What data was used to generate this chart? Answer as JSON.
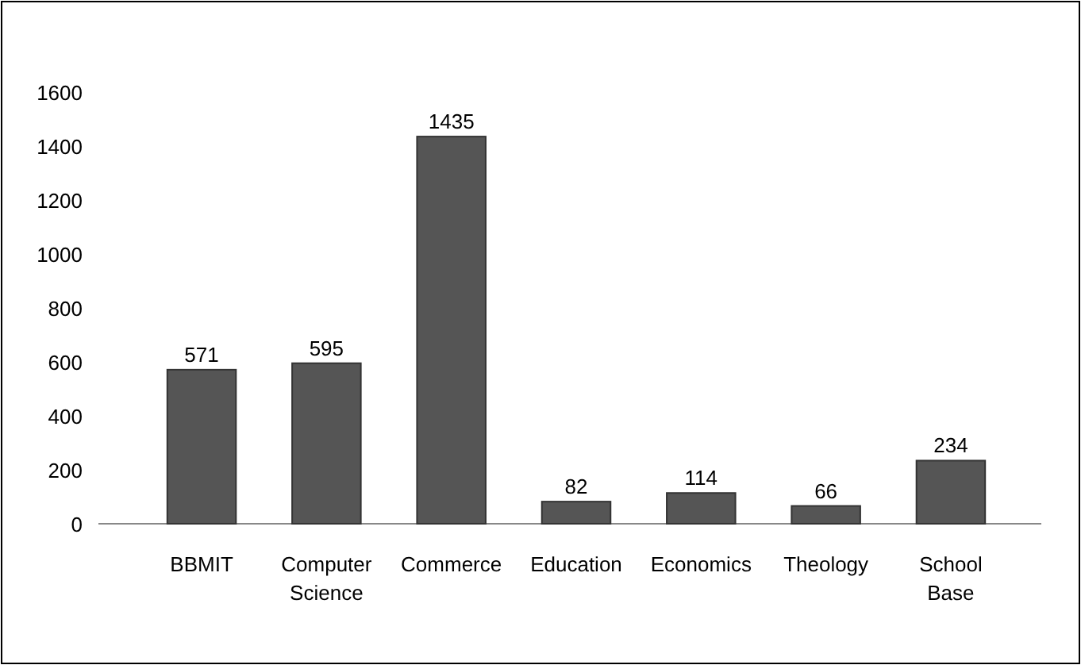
{
  "chart_data": {
    "type": "bar",
    "categories": [
      "BBMIT",
      "Computer Science",
      "Commerce",
      "Education",
      "Economics",
      "Theology",
      "School Base"
    ],
    "values": [
      571,
      595,
      1435,
      82,
      114,
      66,
      234
    ],
    "color": "#555555",
    "ylim": [
      0,
      1600
    ],
    "yticks": [
      0,
      200,
      400,
      600,
      800,
      1000,
      1200,
      1400,
      1600
    ],
    "data_labels": true,
    "grid": false
  }
}
